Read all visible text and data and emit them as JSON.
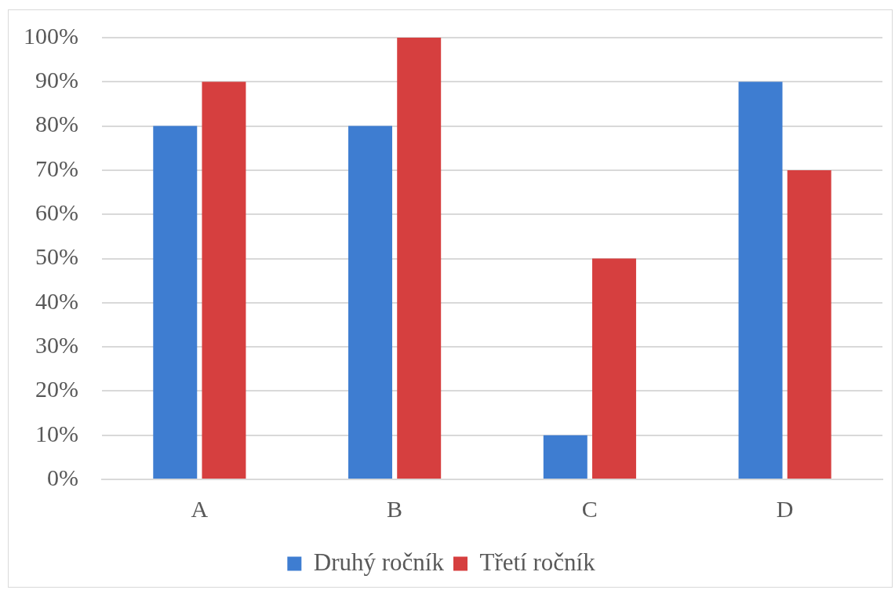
{
  "chart_data": {
    "type": "bar",
    "categories": [
      "A",
      "B",
      "C",
      "D"
    ],
    "series": [
      {
        "name": "Druhý ročník",
        "color": "#3e7dd1",
        "values": [
          80,
          80,
          10,
          90
        ]
      },
      {
        "name": "Třetí ročník",
        "color": "#d63f3f",
        "values": [
          90,
          100,
          50,
          70
        ]
      }
    ],
    "ylim": [
      0,
      100
    ],
    "yticks": [
      {
        "value": 0,
        "label": "0%"
      },
      {
        "value": 10,
        "label": "10%"
      },
      {
        "value": 20,
        "label": "20%"
      },
      {
        "value": 30,
        "label": "30%"
      },
      {
        "value": 40,
        "label": "40%"
      },
      {
        "value": 50,
        "label": "50%"
      },
      {
        "value": 60,
        "label": "60%"
      },
      {
        "value": 70,
        "label": "70%"
      },
      {
        "value": 80,
        "label": "80%"
      },
      {
        "value": 90,
        "label": "90%"
      },
      {
        "value": 100,
        "label": "100%"
      }
    ],
    "grid": "y",
    "legend": "bottom"
  }
}
